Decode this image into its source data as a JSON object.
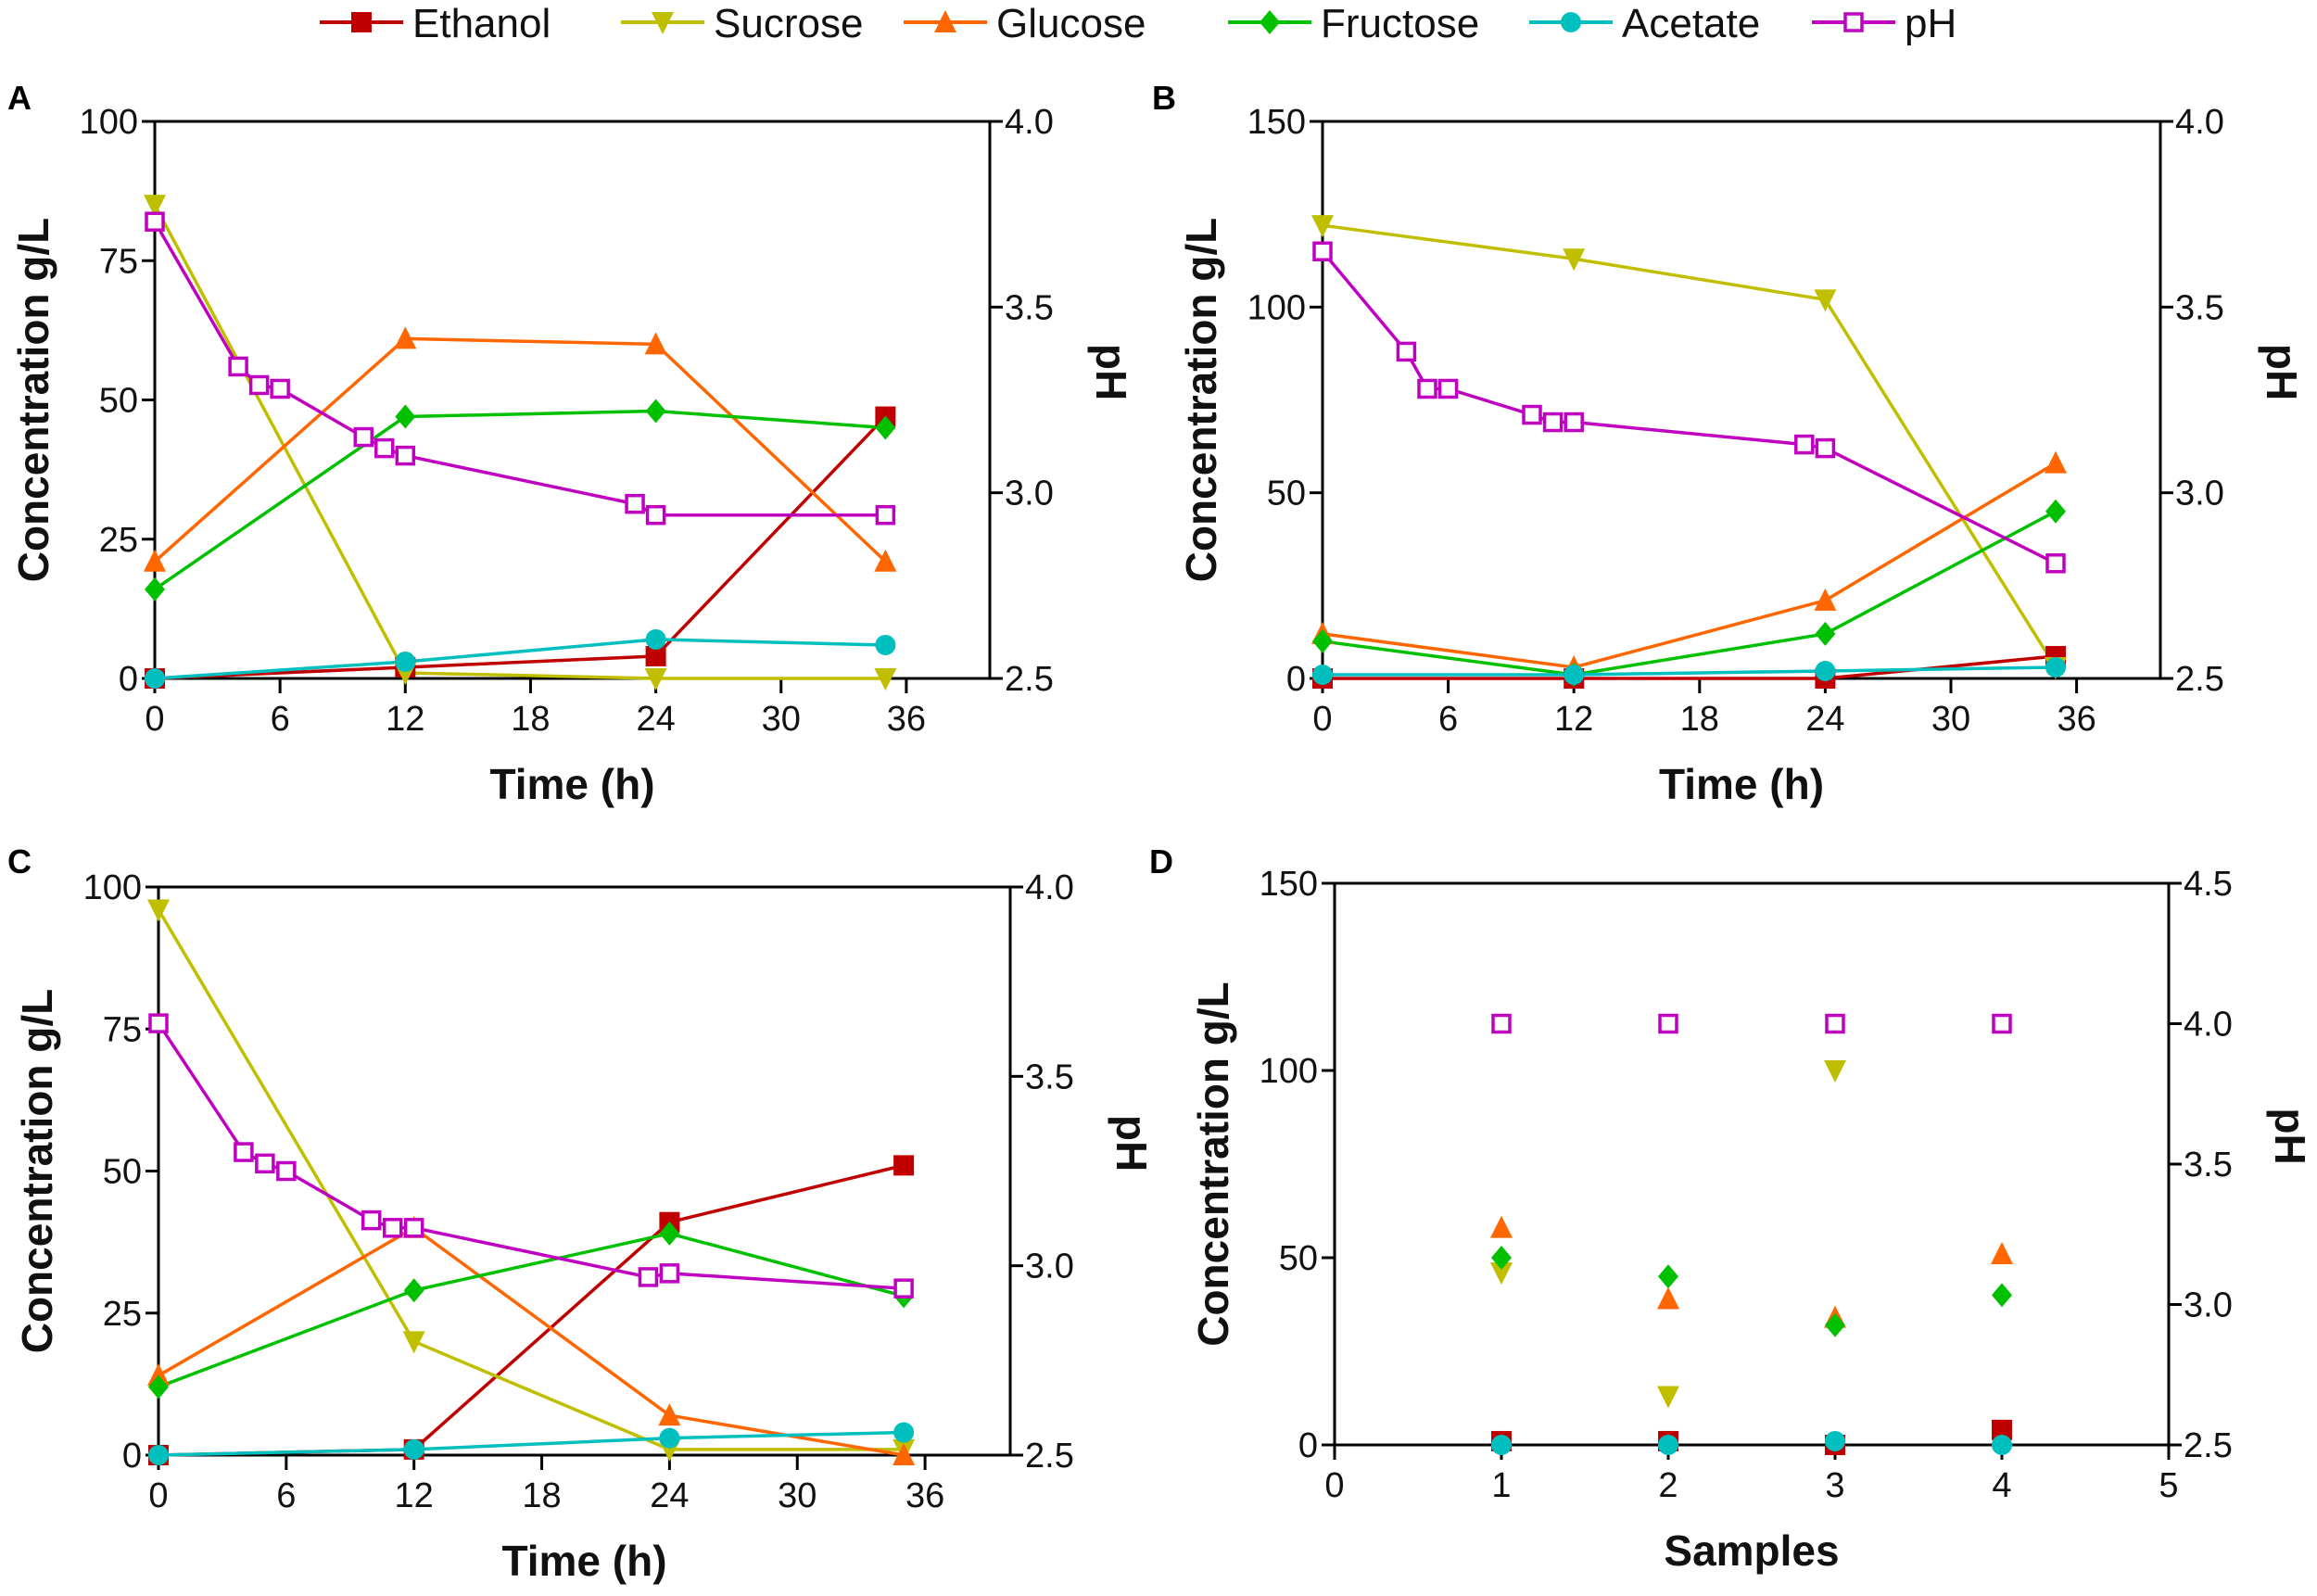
{
  "legend": [
    {
      "name": "Ethanol",
      "color": "#c00000",
      "marker": "square-filled"
    },
    {
      "name": "Sucrose",
      "color": "#bfbf00",
      "marker": "triangle-down"
    },
    {
      "name": "Glucose",
      "color": "#ff6600",
      "marker": "triangle-up"
    },
    {
      "name": "Fructose",
      "color": "#00c000",
      "marker": "diamond"
    },
    {
      "name": "Acetate",
      "color": "#00bfbf",
      "marker": "circle"
    },
    {
      "name": "pH",
      "color": "#c000c0",
      "marker": "square-open"
    }
  ],
  "chart_data": [
    {
      "panel": "A",
      "type": "line",
      "xlabel": "Time (h)",
      "ylabel": "Concentration g/L",
      "y2label": "pH",
      "xlim": [
        0,
        40
      ],
      "xticks": [
        0,
        6,
        12,
        18,
        24,
        30,
        36
      ],
      "ylim": [
        0,
        100
      ],
      "yticks": [
        0,
        25,
        50,
        75,
        100
      ],
      "y2lim": [
        2.5,
        4.0
      ],
      "y2ticks": [
        "2.5",
        "3.0",
        "3.5",
        "4.0"
      ],
      "connected": true,
      "series": [
        {
          "name": "Ethanol",
          "x": [
            0,
            12,
            24,
            35
          ],
          "y": [
            0,
            2,
            4,
            47
          ]
        },
        {
          "name": "Sucrose",
          "x": [
            0,
            12,
            24,
            35
          ],
          "y": [
            85,
            1,
            0,
            0
          ]
        },
        {
          "name": "Glucose",
          "x": [
            0,
            12,
            24,
            35
          ],
          "y": [
            21,
            61,
            60,
            21
          ]
        },
        {
          "name": "Fructose",
          "x": [
            0,
            12,
            24,
            35
          ],
          "y": [
            16,
            47,
            48,
            45
          ]
        },
        {
          "name": "Acetate",
          "x": [
            0,
            12,
            24,
            35
          ],
          "y": [
            0,
            3,
            7,
            6
          ]
        },
        {
          "name": "pH",
          "axis": "right",
          "x": [
            0,
            4,
            5,
            6,
            10,
            11,
            12,
            23,
            24,
            35
          ],
          "y": [
            3.73,
            3.34,
            3.29,
            3.28,
            3.15,
            3.12,
            3.1,
            2.97,
            2.94,
            2.94
          ]
        }
      ]
    },
    {
      "panel": "B",
      "type": "line",
      "xlabel": "Time (h)",
      "ylabel": "Concentration g/L",
      "y2label": "pH",
      "xlim": [
        0,
        40
      ],
      "xticks": [
        0,
        6,
        12,
        18,
        24,
        30,
        36
      ],
      "ylim": [
        0,
        150
      ],
      "yticks": [
        0,
        50,
        100,
        150
      ],
      "y2lim": [
        2.5,
        4.0
      ],
      "y2ticks": [
        "2.5",
        "3.0",
        "3.5",
        "4.0"
      ],
      "connected": true,
      "series": [
        {
          "name": "Ethanol",
          "x": [
            0,
            12,
            24,
            35
          ],
          "y": [
            0,
            0,
            0,
            6
          ]
        },
        {
          "name": "Sucrose",
          "x": [
            0,
            12,
            24,
            35
          ],
          "y": [
            122,
            113,
            102,
            3
          ]
        },
        {
          "name": "Glucose",
          "x": [
            0,
            12,
            24,
            35
          ],
          "y": [
            12,
            3,
            21,
            58
          ]
        },
        {
          "name": "Fructose",
          "x": [
            0,
            12,
            24,
            35
          ],
          "y": [
            10,
            1,
            12,
            45
          ]
        },
        {
          "name": "Acetate",
          "x": [
            0,
            12,
            24,
            35
          ],
          "y": [
            1,
            1,
            2,
            3
          ]
        },
        {
          "name": "pH",
          "axis": "right",
          "x": [
            0,
            4,
            5,
            6,
            10,
            11,
            12,
            23,
            24,
            35
          ],
          "y": [
            3.65,
            3.38,
            3.28,
            3.28,
            3.21,
            3.19,
            3.19,
            3.13,
            3.12,
            2.81
          ]
        }
      ]
    },
    {
      "panel": "C",
      "type": "line",
      "xlabel": "Time (h)",
      "ylabel": "Concentration g/L",
      "y2label": "pH",
      "xlim": [
        0,
        40
      ],
      "xticks": [
        0,
        6,
        12,
        18,
        24,
        30,
        36
      ],
      "ylim": [
        0,
        100
      ],
      "yticks": [
        0,
        25,
        50,
        75,
        100
      ],
      "y2lim": [
        2.5,
        4.0
      ],
      "y2ticks": [
        "2.5",
        "3.0",
        "3.5",
        "4.0"
      ],
      "connected": true,
      "series": [
        {
          "name": "Ethanol",
          "x": [
            0,
            12,
            24,
            35
          ],
          "y": [
            0,
            1,
            41,
            51
          ]
        },
        {
          "name": "Sucrose",
          "x": [
            0,
            12,
            24,
            35
          ],
          "y": [
            96,
            20,
            1,
            1
          ]
        },
        {
          "name": "Glucose",
          "x": [
            0,
            12,
            24,
            35
          ],
          "y": [
            14,
            40,
            7,
            0
          ]
        },
        {
          "name": "Fructose",
          "x": [
            0,
            12,
            24,
            35
          ],
          "y": [
            12,
            29,
            39,
            28
          ]
        },
        {
          "name": "Acetate",
          "x": [
            0,
            12,
            24,
            35
          ],
          "y": [
            0,
            1,
            3,
            4
          ]
        },
        {
          "name": "pH",
          "axis": "right",
          "x": [
            0,
            4,
            5,
            6,
            10,
            11,
            12,
            23,
            24,
            35
          ],
          "y": [
            3.64,
            3.3,
            3.27,
            3.25,
            3.12,
            3.1,
            3.1,
            2.97,
            2.98,
            2.94
          ]
        }
      ]
    },
    {
      "panel": "D",
      "type": "scatter",
      "xlabel": "Samples",
      "ylabel": "Concentration g/L",
      "y2label": "pH",
      "xlim": [
        0,
        5
      ],
      "xticks": [
        0,
        1,
        2,
        3,
        4,
        5
      ],
      "ylim": [
        0,
        150
      ],
      "yticks": [
        0,
        50,
        100,
        150
      ],
      "y2lim": [
        2.5,
        4.5
      ],
      "y2ticks": [
        "2.5",
        "3.0",
        "3.5",
        "4.0",
        "4.5"
      ],
      "connected": false,
      "series": [
        {
          "name": "Ethanol",
          "x": [
            1,
            2,
            3,
            4
          ],
          "y": [
            1,
            1,
            0,
            4
          ]
        },
        {
          "name": "Sucrose",
          "x": [
            1,
            2,
            3
          ],
          "y": [
            46,
            13,
            100
          ]
        },
        {
          "name": "Glucose",
          "x": [
            1,
            2,
            3,
            4
          ],
          "y": [
            58,
            39,
            34,
            51
          ]
        },
        {
          "name": "Fructose",
          "x": [
            1,
            2,
            3,
            4
          ],
          "y": [
            50,
            45,
            32,
            40
          ]
        },
        {
          "name": "Acetate",
          "x": [
            1,
            2,
            3,
            4
          ],
          "y": [
            0,
            0,
            1,
            0
          ]
        },
        {
          "name": "pH",
          "axis": "right",
          "x": [
            1,
            2,
            3,
            4
          ],
          "y": [
            4.0,
            4.0,
            4.0,
            4.0
          ]
        }
      ]
    }
  ]
}
